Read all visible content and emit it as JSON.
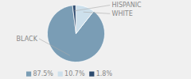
{
  "chart_data": {
    "type": "pie",
    "categories": [
      "BLACK",
      "WHITE",
      "HISPANIC"
    ],
    "values": [
      87.5,
      10.7,
      1.8
    ],
    "value_labels": [
      "87.5%",
      "10.7%",
      "1.8%"
    ],
    "colors": [
      "#7a9db5",
      "#cde0ec",
      "#2c4a6e"
    ],
    "legend": "bottom"
  }
}
